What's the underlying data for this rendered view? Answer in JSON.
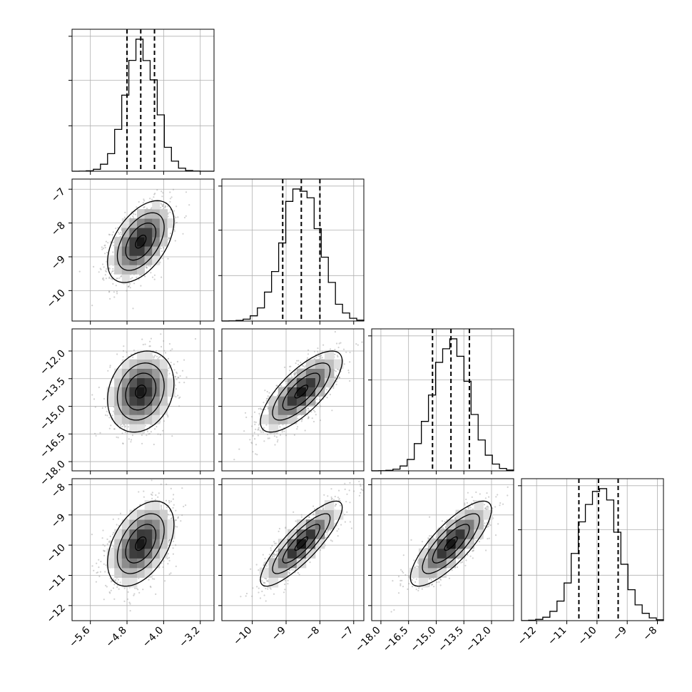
{
  "chart_data": {
    "type": "corner",
    "parameters": [
      {
        "range": [
          -6.0,
          -2.9
        ],
        "ticks": [
          -5.6,
          -4.8,
          -4.0,
          -3.2
        ],
        "tick_labels": [
          "−5.6",
          "−4.8",
          "−4.0",
          "−3.2"
        ],
        "quantiles": [
          -4.8,
          -4.5,
          -4.2
        ],
        "mean": -4.5,
        "sd": 0.33
      },
      {
        "range": [
          -10.9,
          -6.7
        ],
        "ticks": [
          -10,
          -9,
          -8,
          -7
        ],
        "tick_labels": [
          "−10",
          "−9",
          "−8",
          "−7"
        ],
        "quantiles": [
          -9.1,
          -8.55,
          -8.0
        ],
        "mean": -8.55,
        "sd": 0.55
      },
      {
        "range": [
          -18.5,
          -10.8
        ],
        "ticks": [
          -18.0,
          -16.5,
          -15.0,
          -13.5,
          -12.0
        ],
        "tick_labels": [
          "−18.0",
          "−16.5",
          "−15.0",
          "−13.5",
          "−12.0"
        ],
        "quantiles": [
          -15.2,
          -14.2,
          -13.2
        ],
        "mean": -14.2,
        "sd": 1.0
      },
      {
        "range": [
          -12.5,
          -7.8
        ],
        "ticks": [
          -12,
          -11,
          -10,
          -9,
          -8
        ],
        "tick_labels": [
          "−12",
          "−11",
          "−10",
          "−9",
          "−8"
        ],
        "quantiles": [
          -10.6,
          -9.95,
          -9.3
        ],
        "mean": -9.95,
        "sd": 0.64
      }
    ],
    "y_tick_labels": {
      "row1": [
        "−7",
        "−8",
        "−9",
        "−10"
      ],
      "row2": [
        "−12.0",
        "−13.5",
        "−15.0",
        "−16.5",
        "−18.0"
      ],
      "row3": [
        "−8",
        "−9",
        "−10",
        "−11",
        "−12"
      ]
    },
    "correlations": {
      "0-1": 0.5,
      "0-2": 0.2,
      "1-2": 0.75,
      "0-3": 0.45,
      "1-3": 0.85,
      "2-3": 0.8
    },
    "histogram_bins": 20,
    "contour_levels": 4,
    "quantile_line_style": "dashed",
    "grid": true,
    "colors": {
      "points": "#999999",
      "contour": "#000000",
      "hist": "#000000",
      "grid": "#b0b0b0"
    }
  }
}
